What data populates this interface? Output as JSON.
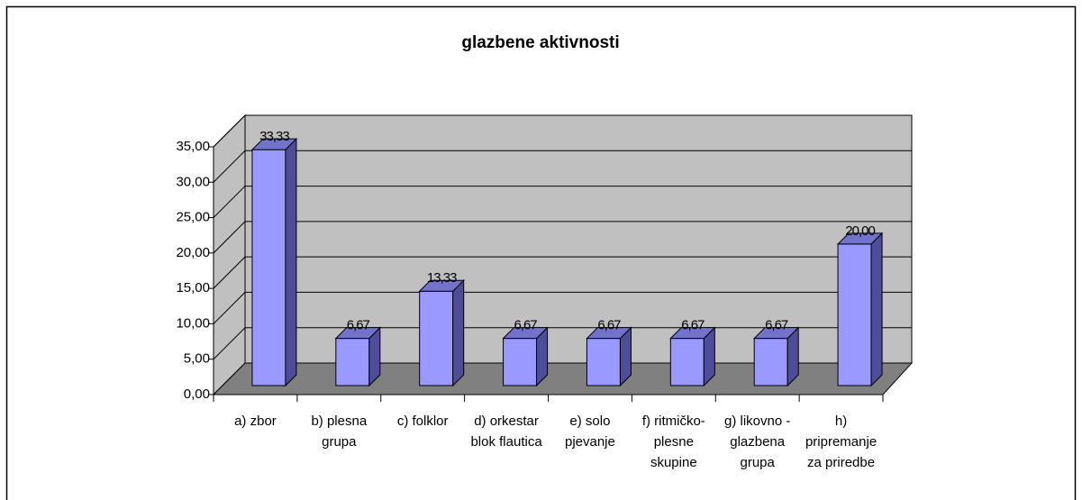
{
  "chart_data": {
    "type": "bar3d",
    "title": "glazbene aktivnosti",
    "categories": [
      "a) zbor",
      "b) plesna\ngrupa",
      "c) folklor",
      "d) orkestar\nblok flautica",
      "e) solo\npjevanje",
      "f) ritmičko-\nplesne\nskupine",
      "g) likovno -\nglazbena\ngrupa",
      "h)\npripremanje\nza priredbe"
    ],
    "values": [
      33.33,
      6.67,
      13.33,
      6.67,
      6.67,
      6.67,
      6.67,
      20.0
    ],
    "value_labels": [
      "33,33",
      "6,67",
      "13,33",
      "6,67",
      "6,67",
      "6,67",
      "6,67",
      "20,00"
    ],
    "color": "#9999ff",
    "ylim": [
      0,
      35
    ],
    "yticks": [
      {
        "value": 0,
        "label": "0,00"
      },
      {
        "value": 5,
        "label": "5,00"
      },
      {
        "value": 10,
        "label": "10,00"
      },
      {
        "value": 15,
        "label": "15,00"
      },
      {
        "value": 20,
        "label": "20,00"
      },
      {
        "value": 25,
        "label": "25,00"
      },
      {
        "value": 30,
        "label": "30,00"
      },
      {
        "value": 35,
        "label": "35,00"
      }
    ],
    "grid": true
  }
}
